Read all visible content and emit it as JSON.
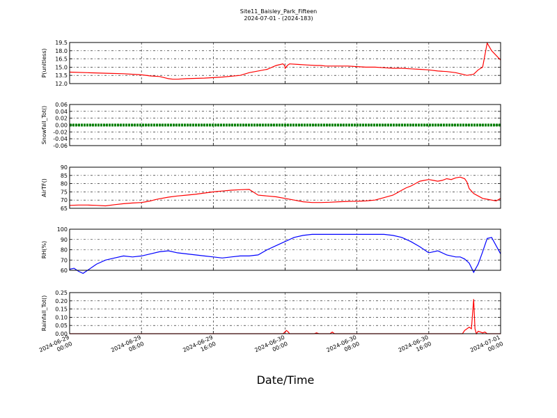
{
  "title": "Site11_Baisley_Park_Fifteen",
  "subtitle": "2024-07-01 - (2024-183)",
  "xlabel": "Date/Time",
  "x_ticks": [
    {
      "line1": "2024-06-29",
      "line2": "00:00"
    },
    {
      "line1": "2024-06-29",
      "line2": "08:00"
    },
    {
      "line1": "2024-06-29",
      "line2": "16:00"
    },
    {
      "line1": "2024-06-30",
      "line2": "00:00"
    },
    {
      "line1": "2024-06-30",
      "line2": "08:00"
    },
    {
      "line1": "2024-06-30",
      "line2": "16:00"
    },
    {
      "line1": "2024-07-01",
      "line2": "00:00"
    }
  ],
  "chart_data": [
    {
      "type": "line",
      "ylabel": "P(unitless)",
      "ylim": [
        12.0,
        19.5
      ],
      "yticks": [
        "12.0",
        "13.5",
        "15.0",
        "16.5",
        "18.0",
        "19.5"
      ],
      "grid": true,
      "color": "#ff0000",
      "x_hours": [
        0,
        4,
        8,
        12,
        16,
        18,
        20,
        21,
        22,
        23,
        24,
        26,
        30,
        34,
        38,
        40,
        44,
        46,
        47.5,
        47.9,
        48,
        48.3,
        48.6,
        49,
        51,
        53,
        55,
        56,
        57,
        58,
        60,
        62,
        64,
        66,
        68,
        70,
        72,
        74,
        76,
        78,
        80,
        82,
        84,
        86,
        87.5,
        88.5,
        90,
        91,
        92,
        93,
        94,
        96
      ],
      "values": [
        14.1,
        14.0,
        13.9,
        13.8,
        13.6,
        13.4,
        13.3,
        13.1,
        12.9,
        12.8,
        12.8,
        12.9,
        13.0,
        13.2,
        13.5,
        14.0,
        14.6,
        15.3,
        15.6,
        15.3,
        14.8,
        15.1,
        15.4,
        15.6,
        15.5,
        15.4,
        15.3,
        15.3,
        15.2,
        15.2,
        15.2,
        15.2,
        15.1,
        15.0,
        15.0,
        14.9,
        14.8,
        14.8,
        14.7,
        14.6,
        14.5,
        14.3,
        14.2,
        14.0,
        13.7,
        13.5,
        13.7,
        14.5,
        15.0,
        19.4,
        18.0,
        16.3
      ]
    },
    {
      "type": "line",
      "ylabel": "Snowfall_Tot()",
      "ylim": [
        -0.06,
        0.06
      ],
      "yticks": [
        "-0.06",
        "-0.04",
        "-0.02",
        "0.00",
        "0.02",
        "0.04",
        "0.06"
      ],
      "grid": true,
      "color": "#008000",
      "x_hours": [
        0,
        96
      ],
      "values": [
        0.0,
        0.0
      ]
    },
    {
      "type": "line",
      "ylabel": "AirTF()",
      "ylim": [
        65,
        90
      ],
      "yticks": [
        "65",
        "70",
        "75",
        "80",
        "85",
        "90"
      ],
      "grid": true,
      "color": "#ff0000",
      "x_hours": [
        0,
        2,
        4,
        6,
        8,
        10,
        12,
        14,
        16,
        17,
        18,
        19,
        20,
        22,
        24,
        26,
        28,
        30,
        32,
        34,
        36,
        38,
        40,
        42,
        44,
        46,
        48,
        50,
        52,
        54,
        56,
        58,
        60,
        62,
        64,
        66,
        68,
        70,
        72,
        73,
        74,
        75,
        76,
        77,
        78,
        79,
        80,
        81,
        82,
        83,
        84,
        85,
        86,
        87,
        88,
        88.5,
        89,
        90,
        91,
        92,
        93,
        94,
        95,
        96
      ],
      "values": [
        66.8,
        67.0,
        67.0,
        66.8,
        66.5,
        67.2,
        67.8,
        68.2,
        68.5,
        69.0,
        69.5,
        70.2,
        70.8,
        71.8,
        72.5,
        73.0,
        73.5,
        74.3,
        75.0,
        75.5,
        76.0,
        76.3,
        76.5,
        73.0,
        72.5,
        72.0,
        71.0,
        70.0,
        69.0,
        68.5,
        68.5,
        68.7,
        69.0,
        69.2,
        69.3,
        69.5,
        70.0,
        71.5,
        73.0,
        74.5,
        76.0,
        77.5,
        78.5,
        80.0,
        81.5,
        82.0,
        82.5,
        82.0,
        81.5,
        82.0,
        83.0,
        82.5,
        83.5,
        84.0,
        83.0,
        81.0,
        77.0,
        74.0,
        72.5,
        71.0,
        70.5,
        70.0,
        69.5,
        71.0
      ]
    },
    {
      "type": "line",
      "ylabel": "RH(%)",
      "ylim": [
        60,
        100
      ],
      "yticks": [
        "60",
        "70",
        "80",
        "90",
        "100"
      ],
      "grid": true,
      "color": "#0000ff",
      "x_hours": [
        0,
        1,
        2,
        3,
        4,
        6,
        8,
        10,
        12,
        14,
        16,
        18,
        20,
        22,
        24,
        26,
        28,
        30,
        32,
        34,
        36,
        38,
        40,
        42,
        44,
        46,
        48,
        50,
        52,
        54,
        56,
        58,
        60,
        62,
        64,
        66,
        68,
        70,
        72,
        74,
        76,
        78,
        80,
        82,
        84,
        86,
        87,
        88,
        89,
        90,
        91,
        92,
        93,
        94,
        96
      ],
      "values": [
        61,
        62,
        59,
        57,
        60,
        66,
        70,
        72,
        74,
        73,
        74,
        76,
        78,
        79,
        77,
        76,
        75,
        74,
        73,
        72,
        73,
        74,
        74,
        75,
        80,
        84,
        88,
        92,
        94,
        95,
        95,
        95,
        95,
        95,
        95,
        95,
        95,
        95,
        94,
        92,
        88,
        83,
        77,
        79,
        75,
        73,
        73,
        71,
        67,
        58,
        66,
        78,
        91,
        92,
        76
      ]
    },
    {
      "type": "line",
      "ylabel": "Rainfall_Tot()",
      "ylim": [
        0.0,
        0.25
      ],
      "yticks": [
        "0.00",
        "0.05",
        "0.10",
        "0.15",
        "0.20",
        "0.25"
      ],
      "grid": true,
      "color": "#ff0000",
      "x_hours": [
        0,
        47.5,
        48,
        48.3,
        48.7,
        49,
        49.5,
        50,
        54.5,
        55,
        55.5,
        58,
        58.5,
        59,
        59.5,
        87,
        87.5,
        88,
        89,
        89.5,
        90,
        90.3,
        90.6,
        91,
        91.5,
        92,
        92.5,
        93,
        96
      ],
      "values": [
        0.0,
        0.0,
        0.01,
        0.02,
        0.01,
        0.0,
        0.0,
        0.0,
        0.0,
        0.005,
        0.0,
        0.0,
        0.01,
        0.0,
        0.0,
        0.0,
        0.0,
        0.02,
        0.04,
        0.03,
        0.21,
        0.03,
        0.0,
        0.015,
        0.01,
        0.005,
        0.01,
        0.0,
        0.0
      ]
    }
  ]
}
